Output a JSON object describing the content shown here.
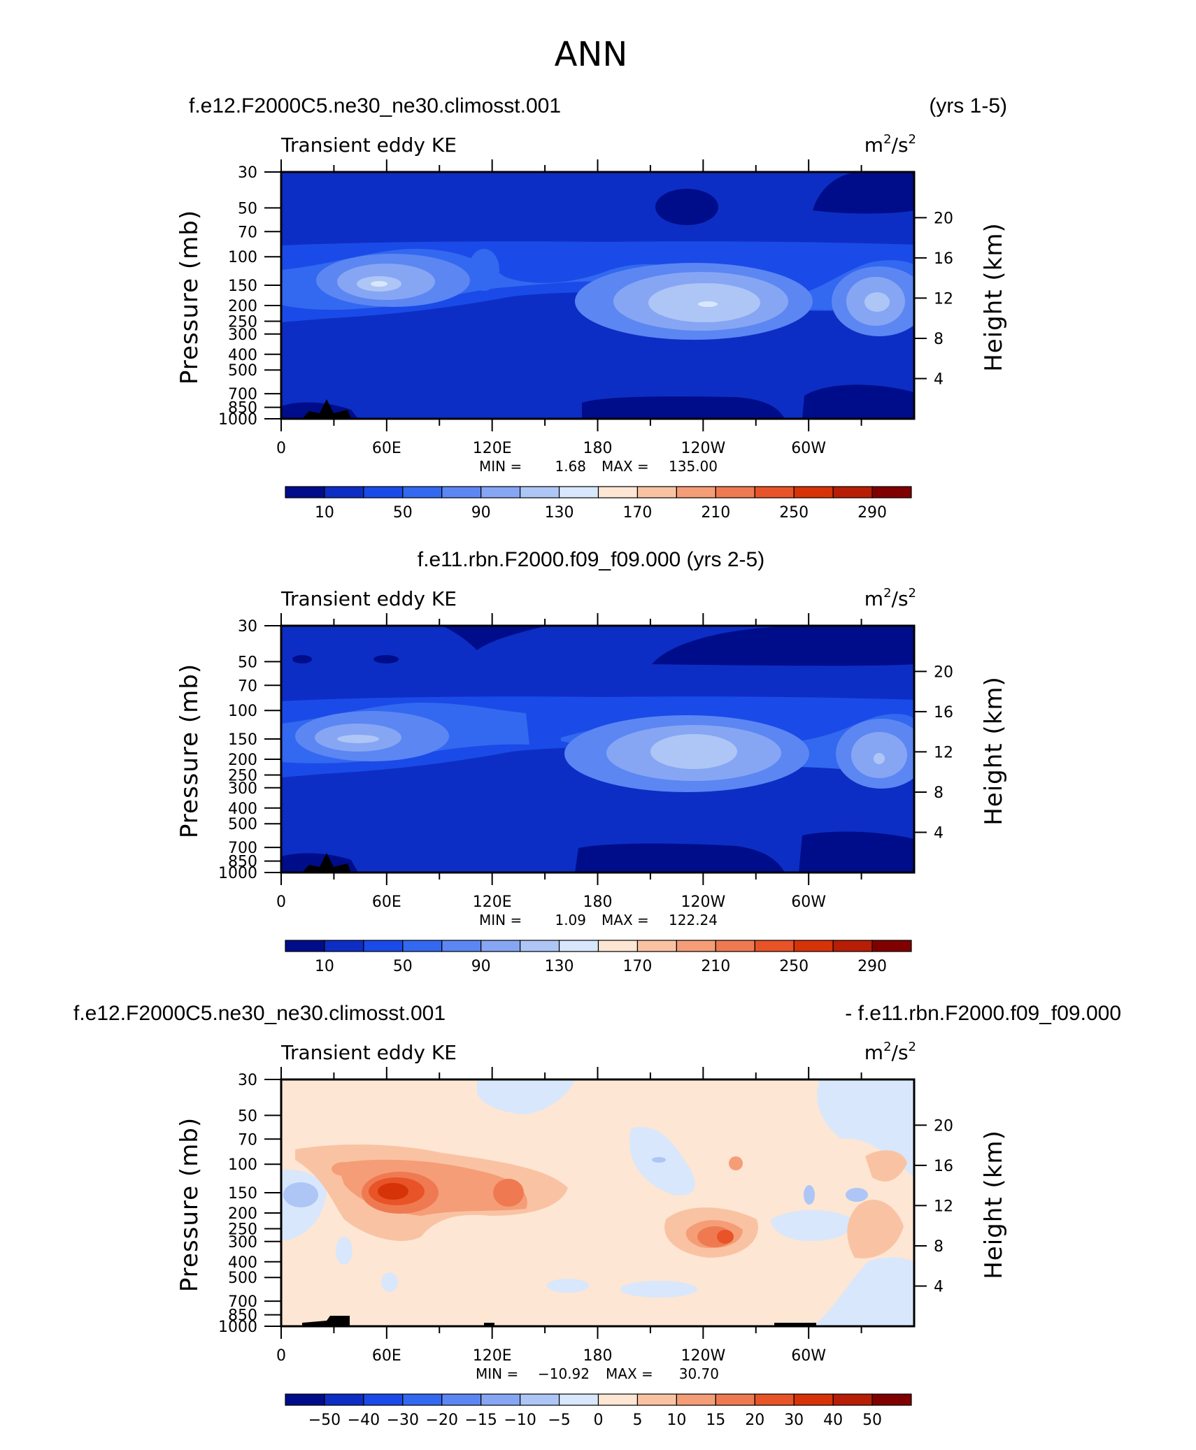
{
  "figure_title": "ANN",
  "colors": {
    "abs_scale": [
      "#000d8a",
      "#0d2ec4",
      "#1a4be8",
      "#3368f0",
      "#5c86f2",
      "#86a6f4",
      "#aec6f6",
      "#d8e7fb",
      "#fde6d4",
      "#f9c3a3",
      "#f59d77",
      "#ef7a51",
      "#e85427",
      "#d73308",
      "#b81e05",
      "#800000"
    ],
    "diff_scale": [
      "#000d8a",
      "#0d2ec4",
      "#1a4be8",
      "#3368f0",
      "#5c86f2",
      "#86a6f4",
      "#aec6f6",
      "#d8e7fb",
      "#fde6d4",
      "#f9c3a3",
      "#f59d77",
      "#ef7a51",
      "#e85427",
      "#d73308",
      "#b81e05",
      "#800000"
    ],
    "topography": "#000000"
  },
  "chart_data": [
    {
      "type": "contour",
      "case_left": "f.e12.F2000C5.ne30_ne30.climosst.001",
      "case_right": "(yrs 1-5)",
      "variable": "Transient eddy KE",
      "units_base": "m",
      "units_exp": "2",
      "units_sep": "/s",
      "units_exp2": "2",
      "ylabel_left": "Pressure  (mb)",
      "ylabel_right": "Height  (km)",
      "pressure_ticks": [
        "30",
        "50",
        "70",
        "100",
        "150",
        "200",
        "250",
        "300",
        "400",
        "500",
        "700",
        "850",
        "1000"
      ],
      "height_ticks": [
        "20",
        "16",
        "12",
        "8",
        "4"
      ],
      "lon_ticks": [
        "0",
        "60E",
        "120E",
        "180",
        "120W",
        "60W"
      ],
      "min_label": "MIN =",
      "min_value": "1.68",
      "max_label": "MAX =",
      "max_value": "135.00",
      "colorbar_levels": [
        "10",
        "50",
        "90",
        "130",
        "170",
        "210",
        "250",
        "290"
      ],
      "min": 1.68,
      "max": 135.0
    },
    {
      "type": "contour",
      "case_center": "f.e11.rbn.F2000.f09_f09.000 (yrs 2-5)",
      "variable": "Transient eddy KE",
      "units_base": "m",
      "units_exp": "2",
      "units_sep": "/s",
      "units_exp2": "2",
      "ylabel_left": "Pressure  (mb)",
      "ylabel_right": "Height  (km)",
      "pressure_ticks": [
        "30",
        "50",
        "70",
        "100",
        "150",
        "200",
        "250",
        "300",
        "400",
        "500",
        "700",
        "850",
        "1000"
      ],
      "height_ticks": [
        "20",
        "16",
        "12",
        "8",
        "4"
      ],
      "lon_ticks": [
        "0",
        "60E",
        "120E",
        "180",
        "120W",
        "60W"
      ],
      "min_label": "MIN =",
      "min_value": "1.09",
      "max_label": "MAX =",
      "max_value": "122.24",
      "colorbar_levels": [
        "10",
        "50",
        "90",
        "130",
        "170",
        "210",
        "250",
        "290"
      ],
      "min": 1.09,
      "max": 122.24
    },
    {
      "type": "contour",
      "case_left": "f.e12.F2000C5.ne30_ne30.climosst.001",
      "case_right": "- f.e11.rbn.F2000.f09_f09.000",
      "variable": "Transient eddy KE",
      "units_base": "m",
      "units_exp": "2",
      "units_sep": "/s",
      "units_exp2": "2",
      "ylabel_left": "Pressure  (mb)",
      "ylabel_right": "Height  (km)",
      "pressure_ticks": [
        "30",
        "50",
        "70",
        "100",
        "150",
        "200",
        "250",
        "300",
        "400",
        "500",
        "700",
        "850",
        "1000"
      ],
      "height_ticks": [
        "20",
        "16",
        "12",
        "8",
        "4"
      ],
      "lon_ticks": [
        "0",
        "60E",
        "120E",
        "180",
        "120W",
        "60W"
      ],
      "min_label": "MIN =",
      "min_value": "−10.92",
      "max_label": "MAX =",
      "max_value": "30.70",
      "colorbar_levels": [
        "−50",
        "−40",
        "−30",
        "−20",
        "−15",
        "−10",
        "−5",
        "0",
        "5",
        "10",
        "15",
        "20",
        "30",
        "40",
        "50"
      ],
      "min": -10.92,
      "max": 30.7
    }
  ]
}
